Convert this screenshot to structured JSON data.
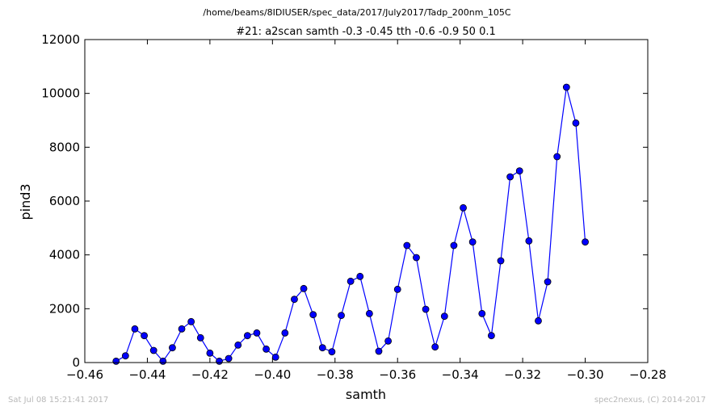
{
  "chart_data": {
    "type": "line",
    "path_title": "/home/beams/8IDIUSER/spec_data/2017/July2017/Tadp_200nm_105C",
    "title": "#21: a2scan  samth -0.3 -0.45  tth -0.6 -0.9  50 0.1",
    "xlabel": "samth",
    "ylabel": "pind3",
    "xlim": [
      -0.46,
      -0.28
    ],
    "ylim": [
      0,
      12000
    ],
    "xticks": [
      -0.46,
      -0.44,
      -0.42,
      -0.4,
      -0.38,
      -0.36,
      -0.34,
      -0.32,
      -0.3,
      -0.28
    ],
    "xtick_labels": [
      "−0.46",
      "−0.44",
      "−0.42",
      "−0.40",
      "−0.38",
      "−0.36",
      "−0.34",
      "−0.32",
      "−0.30",
      "−0.28"
    ],
    "yticks": [
      0,
      2000,
      4000,
      6000,
      8000,
      10000,
      12000
    ],
    "ytick_labels": [
      "0",
      "2000",
      "4000",
      "6000",
      "8000",
      "10000",
      "12000"
    ],
    "grid": false,
    "series": [
      {
        "color": "#0000ff",
        "marker": "circle",
        "x": [
          -0.45,
          -0.447,
          -0.444,
          -0.441,
          -0.438,
          -0.435,
          -0.432,
          -0.429,
          -0.426,
          -0.423,
          -0.42,
          -0.417,
          -0.414,
          -0.411,
          -0.408,
          -0.405,
          -0.402,
          -0.399,
          -0.396,
          -0.393,
          -0.39,
          -0.387,
          -0.384,
          -0.381,
          -0.378,
          -0.375,
          -0.372,
          -0.369,
          -0.366,
          -0.363,
          -0.36,
          -0.357,
          -0.354,
          -0.351,
          -0.348,
          -0.345,
          -0.342,
          -0.339,
          -0.336,
          -0.333,
          -0.33,
          -0.327,
          -0.324,
          -0.321,
          -0.318,
          -0.315,
          -0.312,
          -0.309,
          -0.306,
          -0.303,
          -0.3
        ],
        "y": [
          50,
          250,
          1250,
          1000,
          450,
          50,
          550,
          1250,
          1520,
          920,
          350,
          50,
          150,
          650,
          1000,
          1100,
          500,
          200,
          1100,
          2350,
          2750,
          1780,
          550,
          400,
          1750,
          3020,
          3200,
          1820,
          420,
          800,
          2720,
          4350,
          3900,
          1980,
          580,
          1720,
          4350,
          5750,
          4480,
          1820,
          1000,
          3780,
          6900,
          7120,
          4520,
          1550,
          3000,
          7650,
          10230,
          8900,
          4480
        ]
      }
    ]
  },
  "footer": {
    "timestamp": "Sat Jul 08 15:21:41 2017",
    "credit": "spec2nexus, (C) 2014-2017"
  }
}
